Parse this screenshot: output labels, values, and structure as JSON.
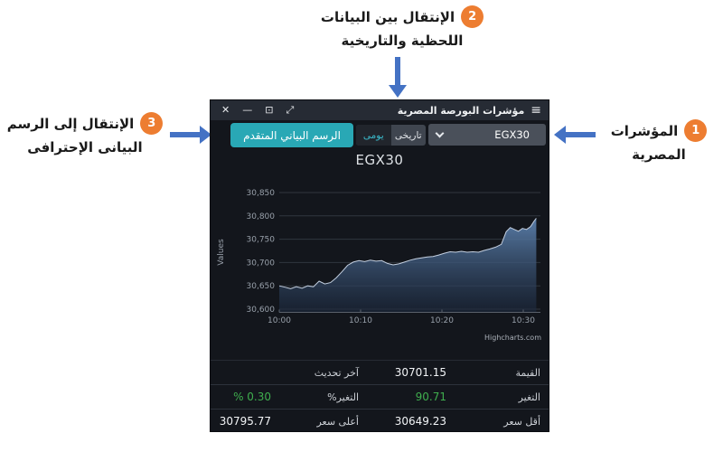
{
  "annotations": {
    "indices": {
      "num": "1",
      "line1": "المؤشرات",
      "line2": "المصرية"
    },
    "data_toggle": {
      "num": "2",
      "line1": "الإنتقال بين البيانات",
      "line2": "اللحظية والتاريخية"
    },
    "advanced_chart": {
      "num": "3",
      "line1": "الإنتقال إلى الرسم",
      "line2": "البيانى الإحترافى"
    }
  },
  "window": {
    "titlebar": {
      "title": "مؤشرات البورصة المصرية",
      "menu_icon": "≡",
      "close_icon": "✕",
      "minimize_icon": "—",
      "restore_icon": "⊡",
      "expand_icon": "⤢"
    },
    "controls": {
      "index_selector": {
        "value": "EGX30"
      },
      "period_toggle": {
        "historical": "تاريخى",
        "daily": "يومى",
        "selected": "يومى"
      },
      "advanced_button": "الرسم البياني المتقدم"
    },
    "table": {
      "rows": [
        {
          "l1": "القيمة",
          "v1": "30701.15",
          "l2": "آخر تحديث",
          "v2": ""
        },
        {
          "l1": "التغير",
          "v1": "90.71",
          "l2": "التغير%",
          "v2": "% 0.30"
        },
        {
          "l1": "أقل سعر",
          "v1": "30649.23",
          "l2": "أعلى سعر",
          "v2": "30795.77"
        }
      ]
    }
  },
  "chart_data": {
    "type": "area",
    "title": "EGX30",
    "ylabel": "Values",
    "credit": "Highcharts.com",
    "x_unit": "minutes after 10:00",
    "x": [
      0,
      0.7,
      1.4,
      2.1,
      2.8,
      3.5,
      4.2,
      4.9,
      5.6,
      6.3,
      7,
      7.7,
      8.4,
      9.1,
      9.8,
      10.5,
      11.2,
      11.9,
      12.6,
      13.3,
      14,
      14.7,
      15.4,
      16.1,
      16.8,
      17.5,
      18.2,
      18.9,
      19.6,
      20.3,
      21,
      21.7,
      22.4,
      23.1,
      23.8,
      24.5,
      25.2,
      25.9,
      26.6,
      27.3,
      27.9,
      28.4,
      28.9,
      29.4,
      29.9,
      30.4,
      30.9,
      31.3,
      31.6
    ],
    "values": [
      30650,
      30647,
      30644,
      30648,
      30645,
      30650,
      30648,
      30660,
      30654,
      30657,
      30667,
      30680,
      30694,
      30701,
      30704,
      30702,
      30705,
      30703,
      30704,
      30698,
      30695,
      30697,
      30701,
      30705,
      30708,
      30710,
      30712,
      30713,
      30716,
      30720,
      30723,
      30722,
      30724,
      30722,
      30723,
      30722,
      30726,
      30729,
      30733,
      30739,
      30766,
      30775,
      30771,
      30767,
      30773,
      30771,
      30777,
      30788,
      30795
    ],
    "xticks": [
      {
        "m": 0,
        "label": "10:00"
      },
      {
        "m": 10,
        "label": "10:10"
      },
      {
        "m": 20,
        "label": "10:20"
      },
      {
        "m": 30,
        "label": "10:30"
      }
    ],
    "yticks": [
      {
        "v": 30600,
        "label": "30,600"
      },
      {
        "v": 30650,
        "label": "30,650"
      },
      {
        "v": 30700,
        "label": "30,700"
      },
      {
        "v": 30750,
        "label": "30,750"
      },
      {
        "v": 30800,
        "label": "30,800"
      },
      {
        "v": 30850,
        "label": "30,850"
      }
    ],
    "ylim": [
      30594,
      30864
    ],
    "last_value": 30701.15,
    "change": 90.71,
    "change_pct": "0.30 %",
    "session_low": 30649.23,
    "session_high": 30795.77
  },
  "colors": {
    "arrow_blue": "#4472c4",
    "badge_orange": "#ed7d31",
    "accent_teal": "#29a8b5",
    "selected_teal_text": "#3bbccd",
    "positive_green": "#3fae4e",
    "line": "#c3cfe0",
    "fill_top": "#5d82af",
    "fill_bottom": "#1c2a40",
    "grid": "#31363e",
    "axis": "#5a616b",
    "tick_label": "#98a0aa",
    "credit_text": "#aab0b8"
  }
}
